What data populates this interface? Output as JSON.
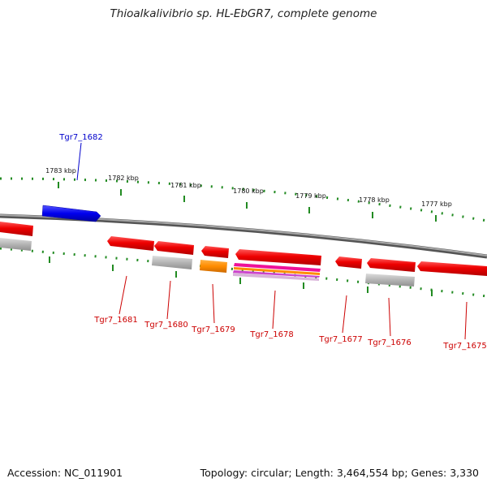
{
  "title": "Thioalkalivibrio sp. HL-EbGR7, complete genome",
  "footer": {
    "accession": "Accession: NC_011901",
    "summary": "Topology: circular; Length: 3,464,554 bp; Genes: 3,330"
  },
  "colors": {
    "forward_gene": "#0000ee",
    "reverse_gene": "#ee0000",
    "pseudo_feature": "#b4b4b4",
    "orange_feature": "#ff8c00",
    "tick": "#228b22",
    "backbone": "#808080"
  },
  "kbp_labels": [
    "1783 kbp",
    "1782 kbp",
    "1781 kbp",
    "1780 kbp",
    "1779 kbp",
    "1778 kbp",
    "1777 kbp"
  ],
  "genes": [
    {
      "label": "Tgr7_1682",
      "strand": "forward"
    },
    {
      "label": "Tgr7_1681",
      "strand": "reverse"
    },
    {
      "label": "Tgr7_1680",
      "strand": "reverse"
    },
    {
      "label": "Tgr7_1679",
      "strand": "reverse"
    },
    {
      "label": "Tgr7_1678",
      "strand": "reverse"
    },
    {
      "label": "Tgr7_1677",
      "strand": "reverse"
    },
    {
      "label": "Tgr7_1676",
      "strand": "reverse"
    },
    {
      "label": "Tgr7_1675",
      "strand": "reverse"
    }
  ]
}
